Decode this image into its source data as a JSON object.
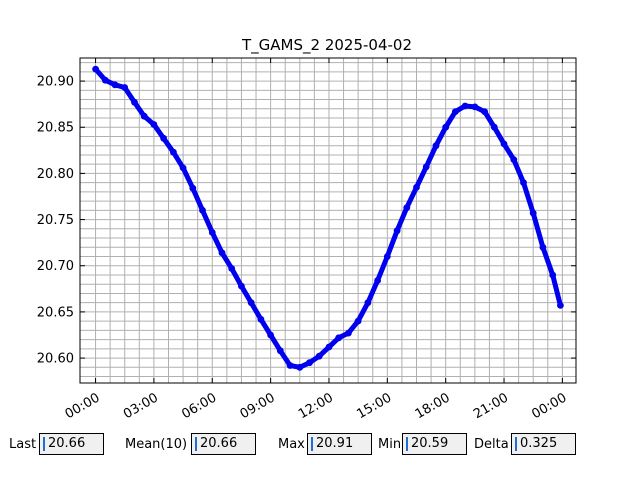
{
  "chart_data": {
    "type": "line",
    "title": "T_GAMS_2 2025-04-02",
    "xlabel": "",
    "ylabel": "",
    "x_unit": "hours",
    "xlim": [
      -0.8,
      24.7
    ],
    "ylim": [
      20.573,
      20.925
    ],
    "x_ticks": [
      0,
      3,
      6,
      9,
      12,
      15,
      18,
      21,
      24
    ],
    "x_tick_labels": [
      "00:00",
      "03:00",
      "06:00",
      "09:00",
      "12:00",
      "15:00",
      "18:00",
      "21:00",
      "00:00"
    ],
    "y_ticks": [
      20.6,
      20.65,
      20.7,
      20.75,
      20.8,
      20.85,
      20.9
    ],
    "y_tick_labels": [
      "20.60",
      "20.65",
      "20.70",
      "20.75",
      "20.80",
      "20.85",
      "20.90"
    ],
    "grid": true,
    "series_color": "#0000ee",
    "series": [
      {
        "name": "",
        "x": [
          0.0,
          0.5,
          1.0,
          1.5,
          2.0,
          2.5,
          3.0,
          3.5,
          4.0,
          4.5,
          5.0,
          5.5,
          6.0,
          6.5,
          7.0,
          7.5,
          8.0,
          8.5,
          9.0,
          9.5,
          10.0,
          10.5,
          11.0,
          11.5,
          12.0,
          12.5,
          13.0,
          13.5,
          14.0,
          14.5,
          15.0,
          15.5,
          16.0,
          16.5,
          17.0,
          17.5,
          18.0,
          18.5,
          19.0,
          19.5,
          20.0,
          20.5,
          21.0,
          21.5,
          22.0,
          22.5,
          23.0,
          23.5,
          23.9
        ],
        "y": [
          20.913,
          20.901,
          20.896,
          20.893,
          20.877,
          20.862,
          20.853,
          20.838,
          20.823,
          20.806,
          20.784,
          20.76,
          20.736,
          20.714,
          20.697,
          20.678,
          20.66,
          20.642,
          20.625,
          20.608,
          20.592,
          20.59,
          20.595,
          20.602,
          20.612,
          20.622,
          20.627,
          20.64,
          20.66,
          20.684,
          20.71,
          20.738,
          20.763,
          20.785,
          20.807,
          20.83,
          20.85,
          20.867,
          20.873,
          20.872,
          20.867,
          20.85,
          20.832,
          20.815,
          20.79,
          20.757,
          20.72,
          20.69,
          20.657
        ]
      }
    ]
  },
  "stats": {
    "last_label": "Last",
    "last_value": "20.66",
    "mean_label": "Mean(10)",
    "mean_value": "20.66",
    "max_label": "Max",
    "max_value": "20.91",
    "min_label": "Min",
    "min_value": "20.59",
    "delta_label": "Delta",
    "delta_value": "0.325"
  }
}
